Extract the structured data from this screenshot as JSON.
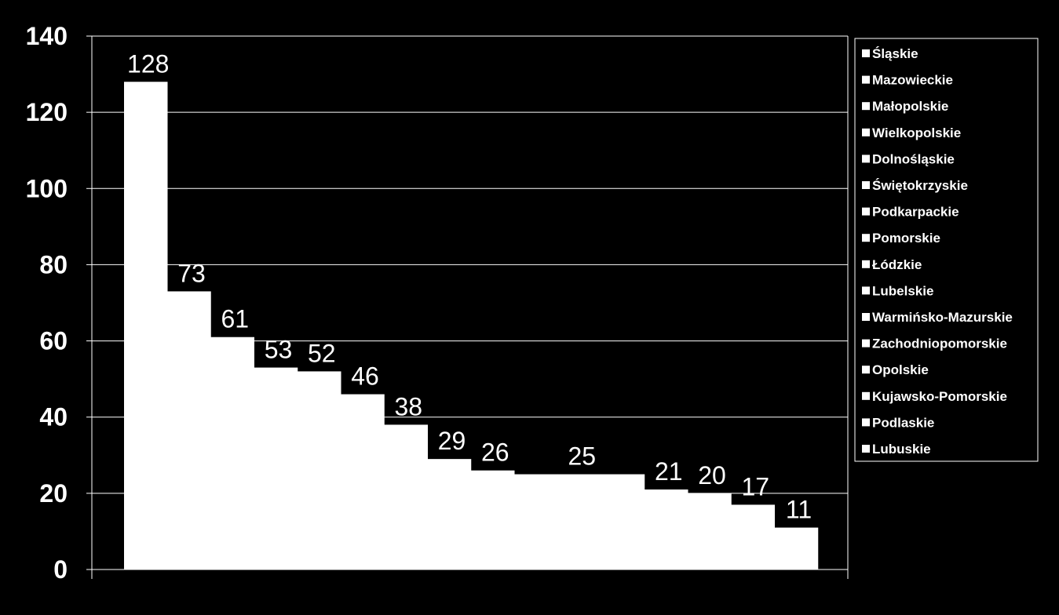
{
  "chart_data": {
    "type": "bar",
    "categories": [
      "Śląskie",
      "Mazowieckie",
      "Małopolskie",
      "Wielkopolskie",
      "Dolnośląskie",
      "Świętokrzyskie",
      "Podkarpackie",
      "Pomorskie",
      "Łódzkie",
      "Lubelskie",
      "Warmińsko-Mazurskie",
      "Zachodniopomorskie",
      "Opolskie",
      "Kujawsko-Pomorskie",
      "Podlaskie",
      "Lubuskie"
    ],
    "series": [
      {
        "values": [
          128,
          73,
          61,
          53,
          52,
          46,
          38,
          29,
          26,
          25,
          25,
          25,
          21,
          20,
          17,
          11
        ]
      }
    ],
    "data_labels": [
      "128",
      "73",
      "61",
      "53",
      "52",
      "46",
      "38",
      "29",
      "26",
      "",
      "25",
      "",
      "21",
      "20",
      "17",
      "11"
    ],
    "y_ticks": [
      "0",
      "20",
      "40",
      "60",
      "80",
      "100",
      "120",
      "140"
    ],
    "ylim": [
      0,
      140
    ],
    "grid": true,
    "legend_position": "right",
    "title": "",
    "xlabel": "",
    "ylabel": "",
    "colors": {
      "background": "#000000",
      "bar": "#ffffff",
      "grid": "#ffffff",
      "text": "#ffffff"
    }
  }
}
